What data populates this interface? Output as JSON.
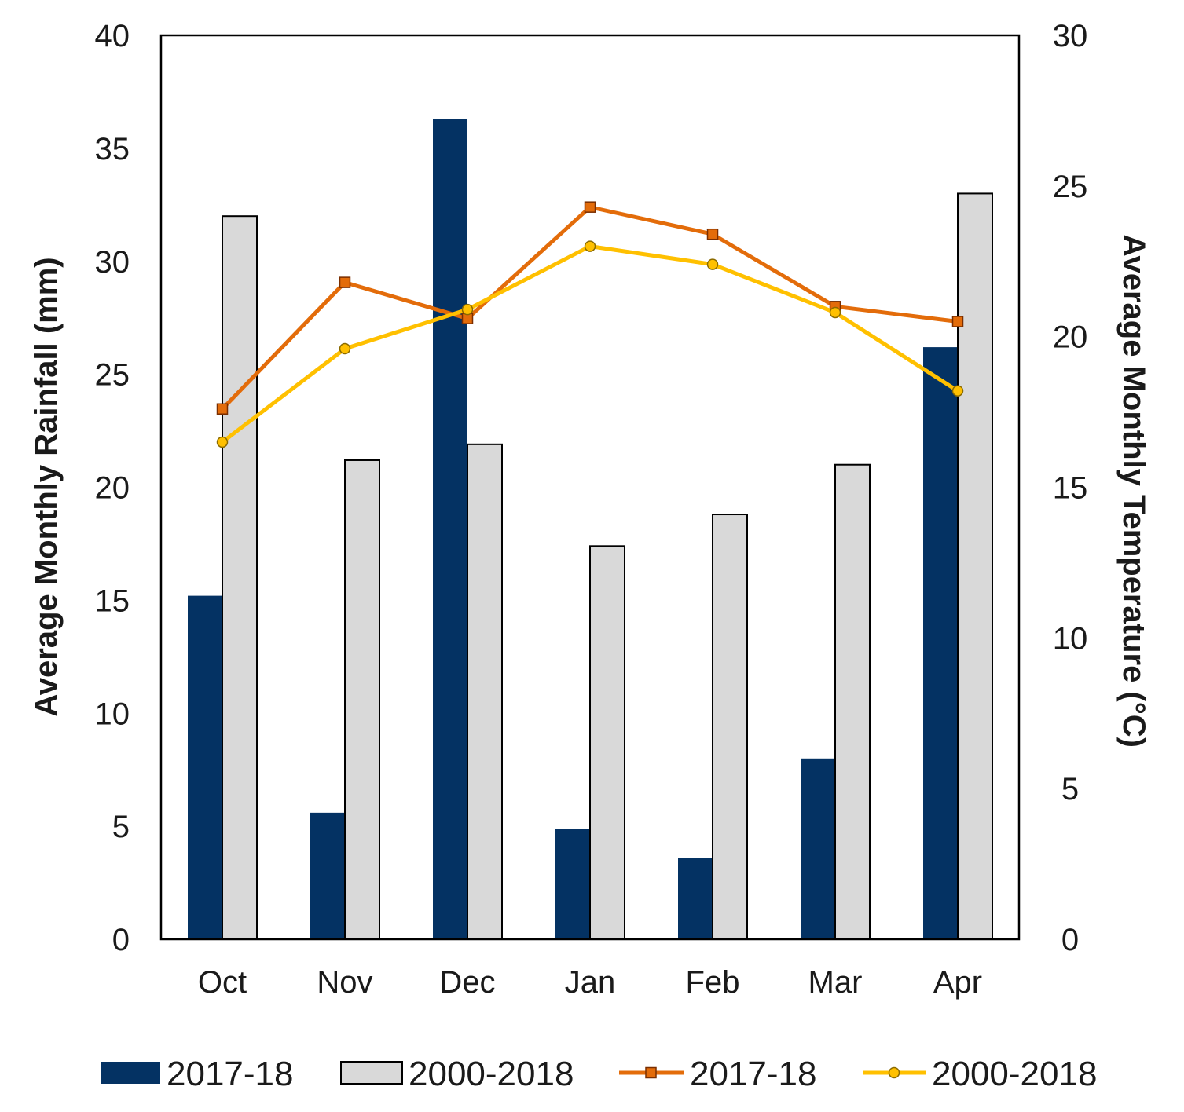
{
  "chart_data": {
    "type": "bar+line",
    "categories": [
      "Oct",
      "Nov",
      "Dec",
      "Jan",
      "Feb",
      "Mar",
      "Apr"
    ],
    "left_axis": {
      "label": "Average Monthly Rainfall (mm)",
      "ylim": [
        0,
        40
      ],
      "ticks": [
        "0",
        "5",
        "10",
        "15",
        "20",
        "25",
        "30",
        "35",
        "40"
      ]
    },
    "right_axis": {
      "label": "Average Monthly Temperature (°C)",
      "ylim": [
        0,
        30
      ],
      "ticks": [
        "0",
        "5",
        "10",
        "15",
        "20",
        "25",
        "30"
      ]
    },
    "bar_series": [
      {
        "name": "2017-18",
        "color": "#043263",
        "values": [
          15.2,
          5.6,
          36.3,
          4.9,
          3.6,
          8.0,
          26.2
        ]
      },
      {
        "name": "2000-2018",
        "color": "#d9d9d9",
        "values": [
          32.0,
          21.2,
          21.9,
          17.4,
          18.8,
          21.0,
          33.0
        ]
      }
    ],
    "line_series": [
      {
        "name": "2017-18",
        "color": "#e36c0a",
        "marker": "square",
        "values": [
          17.6,
          21.8,
          20.6,
          24.3,
          23.4,
          21.0,
          20.5
        ]
      },
      {
        "name": "2000-2018",
        "color": "#ffc000",
        "marker": "circle",
        "values": [
          16.5,
          19.6,
          20.9,
          23.0,
          22.4,
          20.8,
          18.2
        ]
      }
    ],
    "legend": {
      "position": "bottom",
      "items": [
        "2017-18",
        "2000-2018",
        "2017-18",
        "2000-2018"
      ]
    }
  }
}
